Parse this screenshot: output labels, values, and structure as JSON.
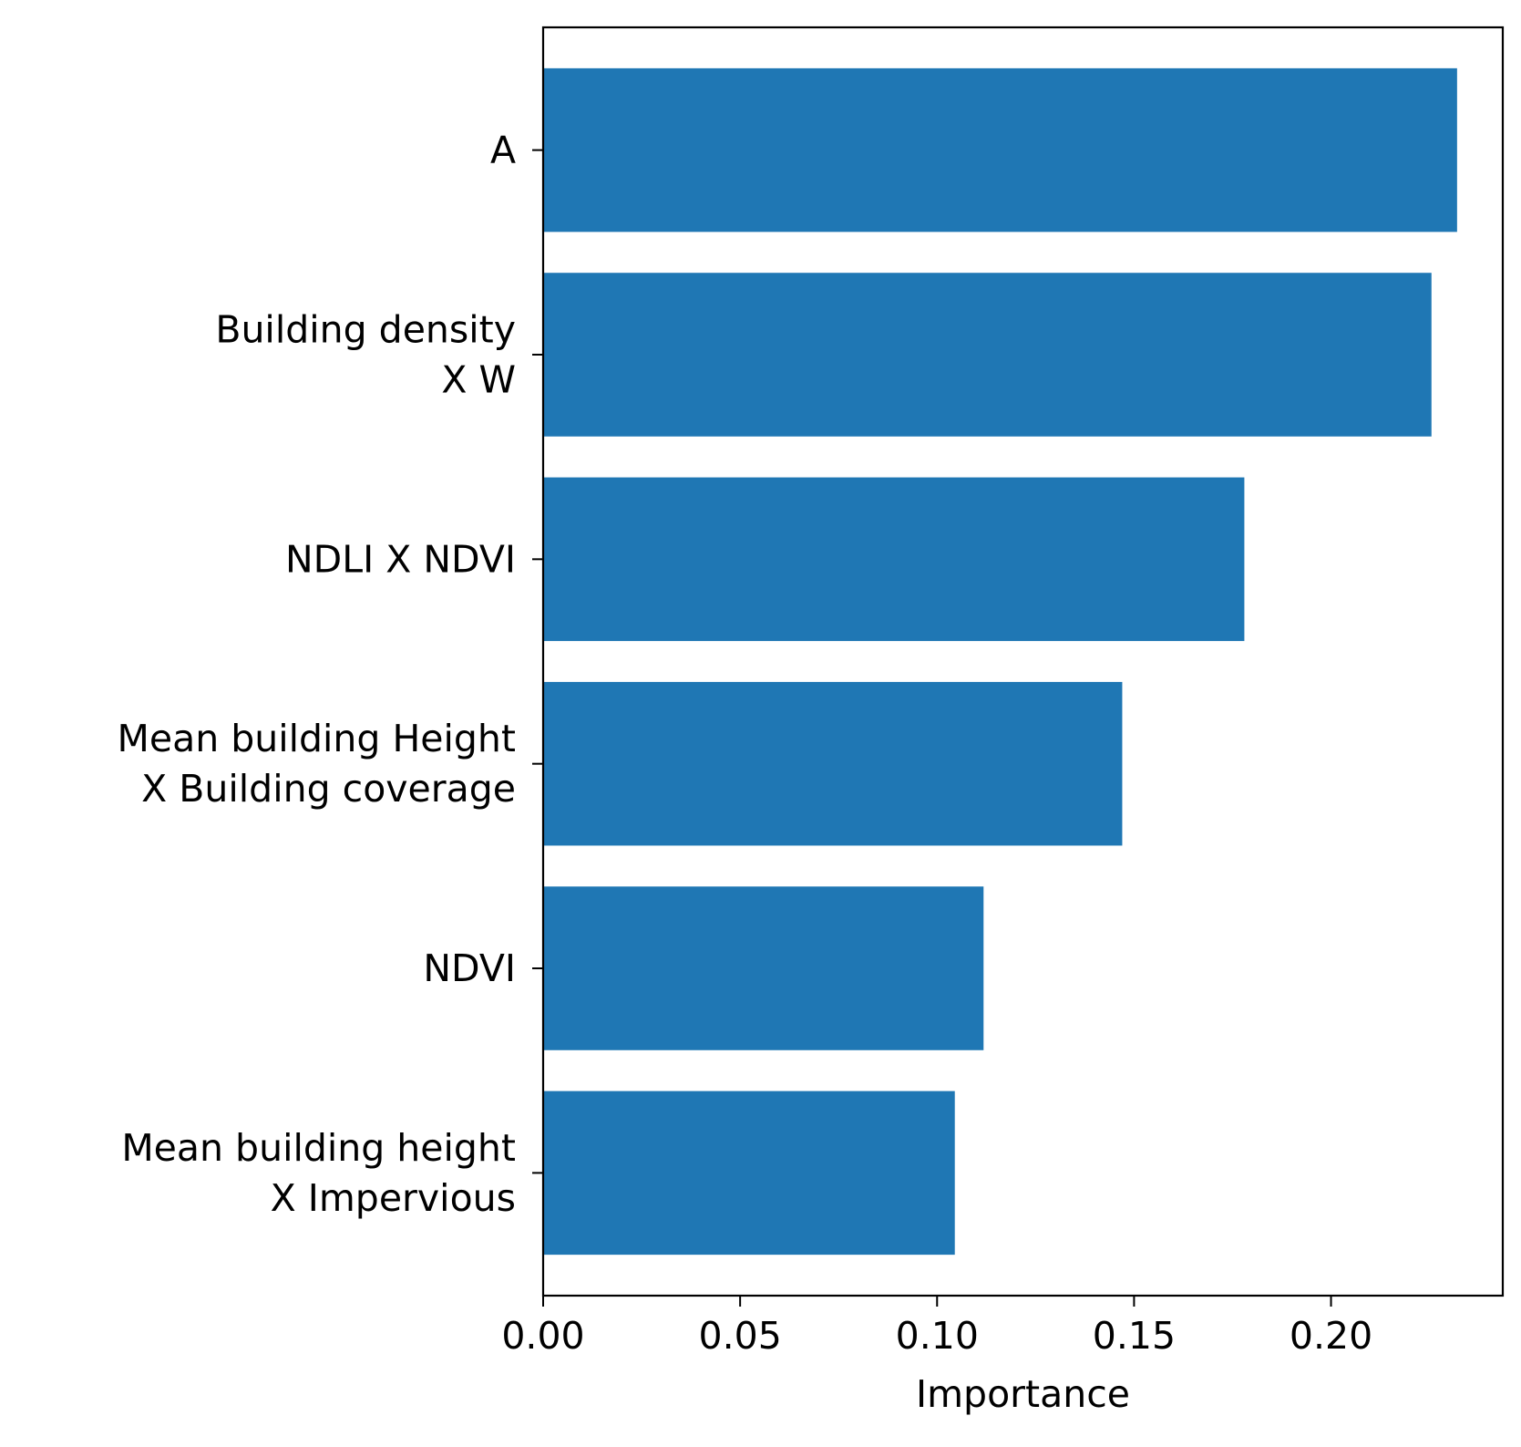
{
  "chart_data": {
    "type": "bar",
    "orientation": "horizontal",
    "title": "",
    "xlabel": "Importance",
    "ylabel": "",
    "categories": [
      [
        "A"
      ],
      [
        "Building density",
        "X W"
      ],
      [
        "NDLI X NDVI"
      ],
      [
        "Mean building Height",
        "X Building coverage"
      ],
      [
        "NDVI"
      ],
      [
        "Mean building height",
        "X Impervious"
      ]
    ],
    "values": [
      0.232,
      0.2255,
      0.178,
      0.147,
      0.1118,
      0.1045
    ],
    "xlim": [
      0,
      0.2436
    ],
    "xticks": [
      "0.00",
      "0.05",
      "0.10",
      "0.15",
      "0.20"
    ],
    "grid": false,
    "bar_color": "#1f77b4"
  }
}
